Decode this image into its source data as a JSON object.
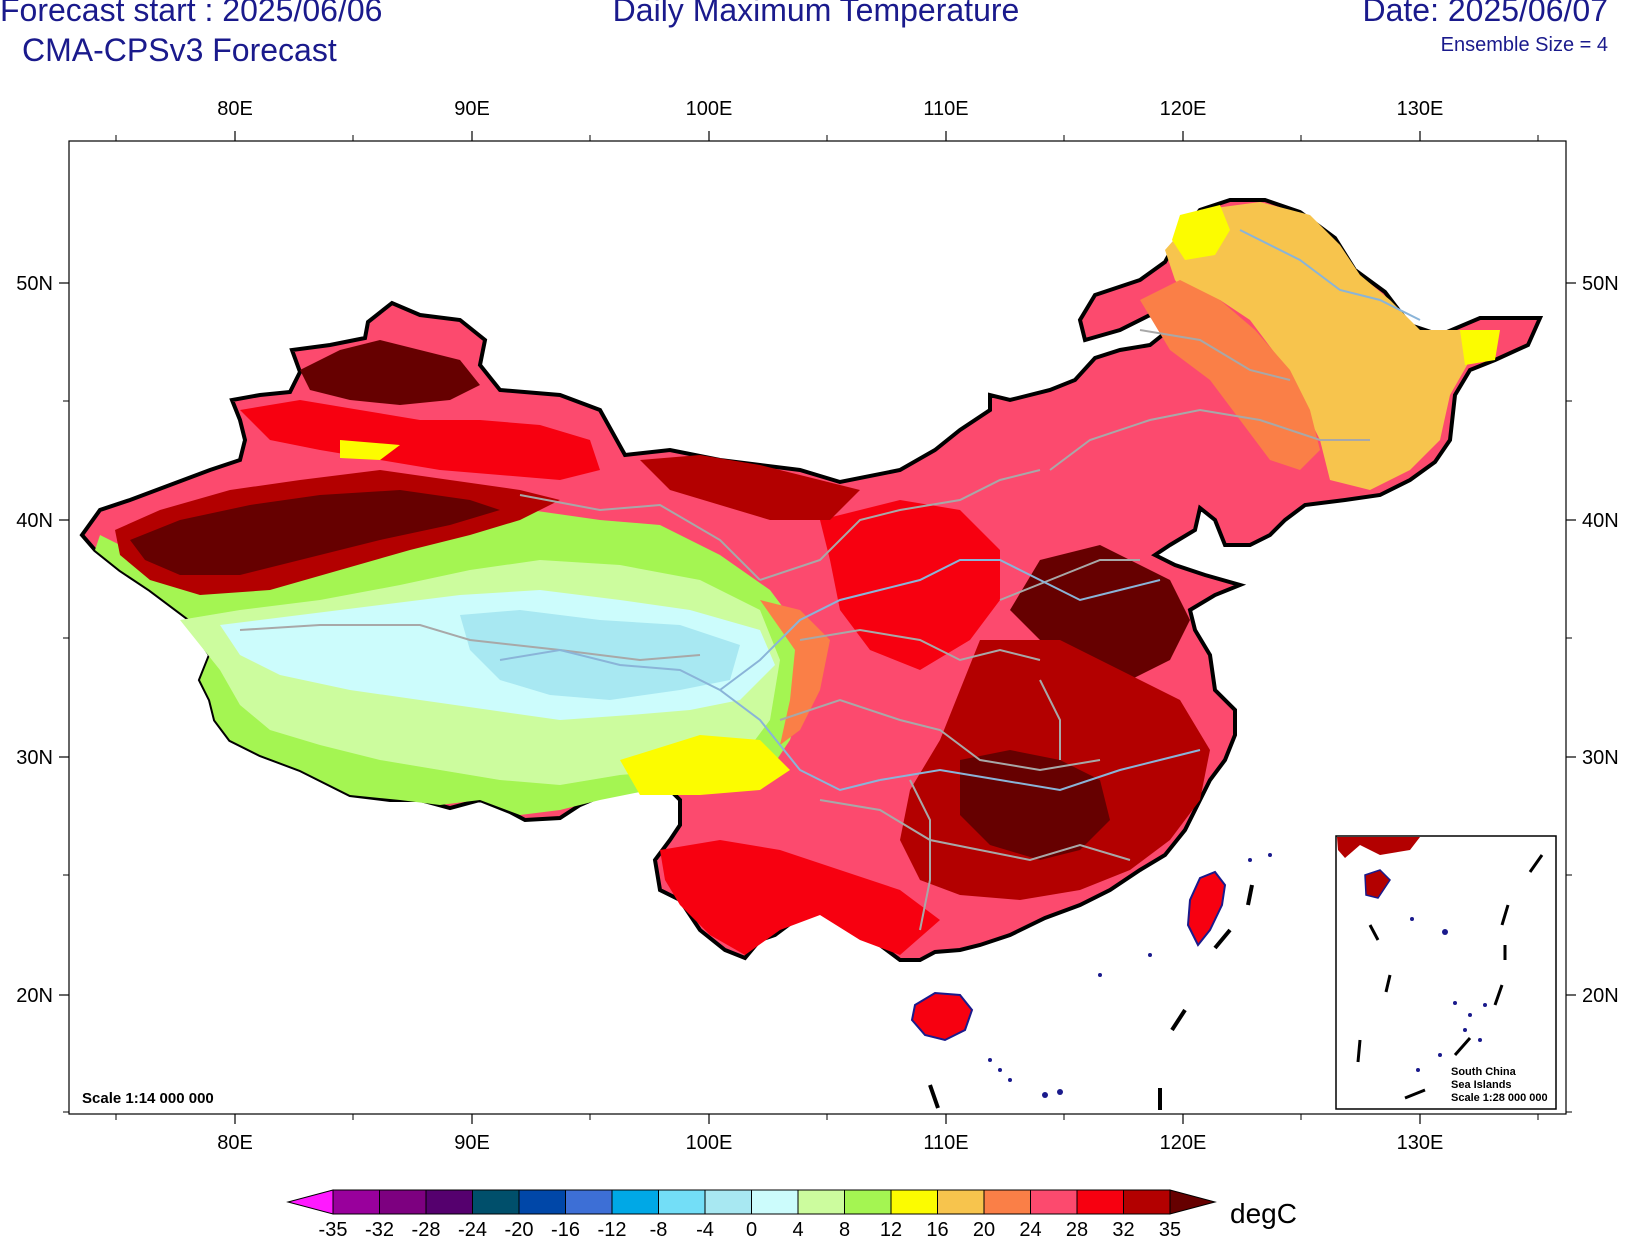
{
  "header": {
    "forecast_start": "Forecast start : 2025/06/06",
    "model": "CMA-CPSv3 Forecast",
    "title": "Daily Maximum Temperature",
    "date": "Date: 2025/06/07",
    "ensemble": "Ensemble Size = 4"
  },
  "axes": {
    "lon_labels": [
      "80E",
      "90E",
      "100E",
      "110E",
      "120E",
      "130E"
    ],
    "lat_labels": [
      "50N",
      "40N",
      "30N",
      "20N"
    ]
  },
  "scale_note": "Scale 1:14 000 000",
  "inset": {
    "title_line1": "South China",
    "title_line2": "Sea Islands",
    "scale": "Scale 1:28 000 000"
  },
  "colorbar": {
    "unit": "degC",
    "labels": [
      "-35",
      "-32",
      "-28",
      "-24",
      "-20",
      "-16",
      "-12",
      "-8",
      "-4",
      "0",
      "4",
      "8",
      "12",
      "16",
      "20",
      "24",
      "28",
      "32",
      "35"
    ],
    "colors": [
      "#99009c",
      "#7d0080",
      "#55006e",
      "#004f6b",
      "#0047a8",
      "#3d6fd6",
      "#00a8e6",
      "#73def7",
      "#a8e8f2",
      "#ccfcfc",
      "#ccfc9e",
      "#a4f552",
      "#fcfc00",
      "#f7c44d",
      "#fa7f47",
      "#fc4a6e",
      "#f70010",
      "#b30000"
    ],
    "low_arrow_color": "#ff19ff",
    "high_arrow_color": "#660000"
  }
}
